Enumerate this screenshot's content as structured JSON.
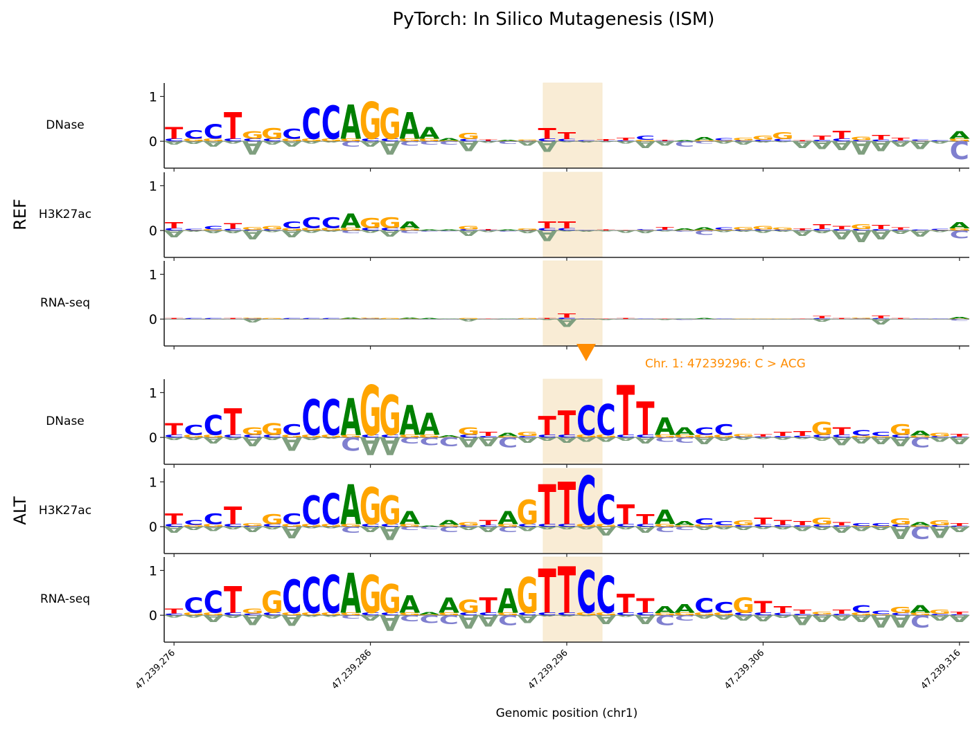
{
  "chart_data": {
    "type": "sequence-logo",
    "title": "PyTorch: In Silico Mutagenesis (ISM)",
    "xlabel": "Genomic position (chr1)",
    "x_range": [
      47239275.5,
      47239316.5
    ],
    "x_ticks": [
      47239276,
      47239286,
      47239296,
      47239306,
      47239316
    ],
    "x_tick_labels": [
      "47,239,276",
      "47,239,286",
      "47,239,296",
      "47,239,306",
      "47,239,316"
    ],
    "ylim": [
      -0.6,
      1.3
    ],
    "y_ticks": [
      0,
      1
    ],
    "y_tick_labels": [
      "0",
      "1"
    ],
    "highlight": {
      "start": 47239294.8,
      "end": 47239297.8,
      "color": "#f5deb3"
    },
    "variant": {
      "position": 47239296,
      "label": "Chr. 1: 47239296: C > ACG",
      "color": "#ff8c00"
    },
    "letter_colors": {
      "A": "#008000",
      "C": "#0000ff",
      "G": "#ffa500",
      "T": "#ff0000"
    },
    "negative_letter_colors": {
      "A": "#7f9f7f",
      "C": "#7f7fcf",
      "G": "#c4a97f",
      "T": "#bf7f7f"
    },
    "groups": [
      {
        "label": "REF",
        "sequence": "TCCTGGCCCAGGAAAGTAGTTCTTCTAACGGGTTTGTTCCA",
        "tracks": [
          {
            "name": "DNase",
            "heights": [
              0.32,
              0.25,
              0.38,
              0.65,
              0.22,
              0.3,
              0.28,
              0.75,
              0.8,
              0.82,
              0.88,
              0.75,
              0.65,
              0.32,
              0.06,
              0.18,
              0.04,
              0.03,
              0.04,
              0.3,
              0.2,
              0.02,
              0.05,
              0.08,
              0.12,
              0.03,
              0.02,
              0.09,
              0.06,
              0.08,
              0.12,
              0.2,
              0.02,
              0.12,
              0.24,
              0.1,
              0.14,
              0.08,
              0.04,
              0.02,
              0.22
            ],
            "neg": [
              0.08,
              0.06,
              0.12,
              0.05,
              0.3,
              0.08,
              0.12,
              0.05,
              0.03,
              0.12,
              0.12,
              0.3,
              0.1,
              0.08,
              0.08,
              0.22,
              0.04,
              0.06,
              0.1,
              0.24,
              0.02,
              0.03,
              0.02,
              0.05,
              0.15,
              0.1,
              0.12,
              0.05,
              0.05,
              0.08,
              0.03,
              0.02,
              0.15,
              0.18,
              0.2,
              0.3,
              0.22,
              0.12,
              0.18,
              0.05,
              0.4
            ]
          },
          {
            "name": "H3K27ac",
            "heights": [
              0.18,
              0.04,
              0.1,
              0.16,
              0.08,
              0.1,
              0.2,
              0.3,
              0.3,
              0.38,
              0.28,
              0.3,
              0.2,
              0.02,
              0.02,
              0.1,
              0.03,
              0.02,
              0.05,
              0.2,
              0.2,
              0.01,
              0.02,
              0.01,
              0.03,
              0.08,
              0.05,
              0.06,
              0.06,
              0.08,
              0.1,
              0.06,
              0.05,
              0.14,
              0.1,
              0.14,
              0.12,
              0.06,
              0.02,
              0.04,
              0.18
            ],
            "neg": [
              0.15,
              0.03,
              0.06,
              0.06,
              0.2,
              0.04,
              0.15,
              0.05,
              0.03,
              0.06,
              0.05,
              0.14,
              0.06,
              0.03,
              0.02,
              0.12,
              0.04,
              0.03,
              0.06,
              0.24,
              0.02,
              0.03,
              0.02,
              0.05,
              0.06,
              0.02,
              0.03,
              0.1,
              0.04,
              0.03,
              0.05,
              0.03,
              0.12,
              0.06,
              0.2,
              0.26,
              0.2,
              0.08,
              0.14,
              0.04,
              0.18
            ]
          },
          {
            "name": "RNA-seq",
            "heights": [
              0.02,
              0.02,
              0.02,
              0.02,
              0.03,
              0.02,
              0.02,
              0.02,
              0.02,
              0.03,
              0.03,
              0.02,
              0.03,
              0.02,
              0.01,
              0.02,
              0.01,
              0.01,
              0.02,
              0.02,
              0.12,
              0.01,
              0.01,
              0.02,
              0.01,
              0.01,
              0.01,
              0.02,
              0.01,
              0.01,
              0.01,
              0.01,
              0.01,
              0.06,
              0.02,
              0.03,
              0.08,
              0.02,
              0.01,
              0.01,
              0.05
            ],
            "neg": [
              0.01,
              0.01,
              0.01,
              0.01,
              0.08,
              0.01,
              0.01,
              0.01,
              0.01,
              0.01,
              0.01,
              0.01,
              0.01,
              0.01,
              0.01,
              0.05,
              0.01,
              0.01,
              0.01,
              0.02,
              0.18,
              0.01,
              0.02,
              0.01,
              0.01,
              0.02,
              0.02,
              0.01,
              0.01,
              0.01,
              0.01,
              0.01,
              0.01,
              0.06,
              0.01,
              0.01,
              0.12,
              0.01,
              0.01,
              0.01,
              0.04
            ]
          }
        ]
      },
      {
        "label": "ALT",
        "sequence": "TCCTGGCCCAGGAAAGTAGTTCCTTAACCGTTTGTCCGAGT",
        "tracks": [
          {
            "name": "DNase",
            "heights": [
              0.32,
              0.28,
              0.5,
              0.65,
              0.22,
              0.32,
              0.3,
              0.85,
              0.85,
              0.88,
              1.18,
              0.95,
              0.72,
              0.55,
              0.05,
              0.22,
              0.12,
              0.1,
              0.12,
              0.48,
              0.6,
              0.72,
              0.75,
              1.18,
              0.8,
              0.45,
              0.22,
              0.22,
              0.3,
              0.08,
              0.06,
              0.12,
              0.14,
              0.35,
              0.22,
              0.16,
              0.12,
              0.3,
              0.15,
              0.1,
              0.08
            ],
            "neg": [
              0.06,
              0.06,
              0.14,
              0.06,
              0.2,
              0.06,
              0.3,
              0.06,
              0.03,
              0.3,
              0.4,
              0.4,
              0.14,
              0.18,
              0.2,
              0.22,
              0.2,
              0.22,
              0.12,
              0.08,
              0.12,
              0.1,
              0.1,
              0.08,
              0.14,
              0.1,
              0.12,
              0.15,
              0.08,
              0.05,
              0.04,
              0.05,
              0.04,
              0.08,
              0.18,
              0.14,
              0.15,
              0.2,
              0.22,
              0.1,
              0.15
            ]
          },
          {
            "name": "H3K27ac",
            "heights": [
              0.3,
              0.15,
              0.3,
              0.45,
              0.08,
              0.28,
              0.3,
              0.7,
              0.75,
              0.95,
              0.88,
              0.7,
              0.35,
              0.02,
              0.15,
              0.1,
              0.15,
              0.35,
              0.6,
              0.95,
              1.0,
              1.15,
              0.72,
              0.5,
              0.28,
              0.38,
              0.12,
              0.18,
              0.12,
              0.14,
              0.2,
              0.15,
              0.12,
              0.2,
              0.1,
              0.08,
              0.08,
              0.18,
              0.1,
              0.14,
              0.08
            ],
            "neg": [
              0.14,
              0.08,
              0.1,
              0.06,
              0.12,
              0.06,
              0.26,
              0.04,
              0.04,
              0.14,
              0.12,
              0.3,
              0.08,
              0.05,
              0.12,
              0.08,
              0.12,
              0.12,
              0.1,
              0.06,
              0.06,
              0.06,
              0.2,
              0.06,
              0.14,
              0.12,
              0.08,
              0.08,
              0.06,
              0.08,
              0.05,
              0.06,
              0.1,
              0.08,
              0.14,
              0.1,
              0.08,
              0.28,
              0.28,
              0.25,
              0.12
            ]
          },
          {
            "name": "RNA-seq",
            "heights": [
              0.15,
              0.4,
              0.55,
              0.65,
              0.15,
              0.55,
              0.8,
              0.85,
              0.9,
              0.95,
              0.9,
              0.7,
              0.45,
              0.06,
              0.4,
              0.35,
              0.4,
              0.6,
              0.85,
              1.05,
              1.1,
              1.0,
              0.88,
              0.48,
              0.38,
              0.2,
              0.25,
              0.38,
              0.3,
              0.4,
              0.32,
              0.2,
              0.12,
              0.08,
              0.12,
              0.22,
              0.1,
              0.18,
              0.22,
              0.12,
              0.08
            ],
            "neg": [
              0.05,
              0.05,
              0.15,
              0.06,
              0.22,
              0.08,
              0.24,
              0.04,
              0.04,
              0.08,
              0.12,
              0.35,
              0.14,
              0.18,
              0.2,
              0.3,
              0.25,
              0.22,
              0.18,
              0.03,
              0.03,
              0.02,
              0.2,
              0.04,
              0.2,
              0.22,
              0.12,
              0.08,
              0.1,
              0.12,
              0.14,
              0.06,
              0.22,
              0.15,
              0.12,
              0.15,
              0.28,
              0.28,
              0.28,
              0.12,
              0.15
            ]
          }
        ]
      }
    ]
  }
}
